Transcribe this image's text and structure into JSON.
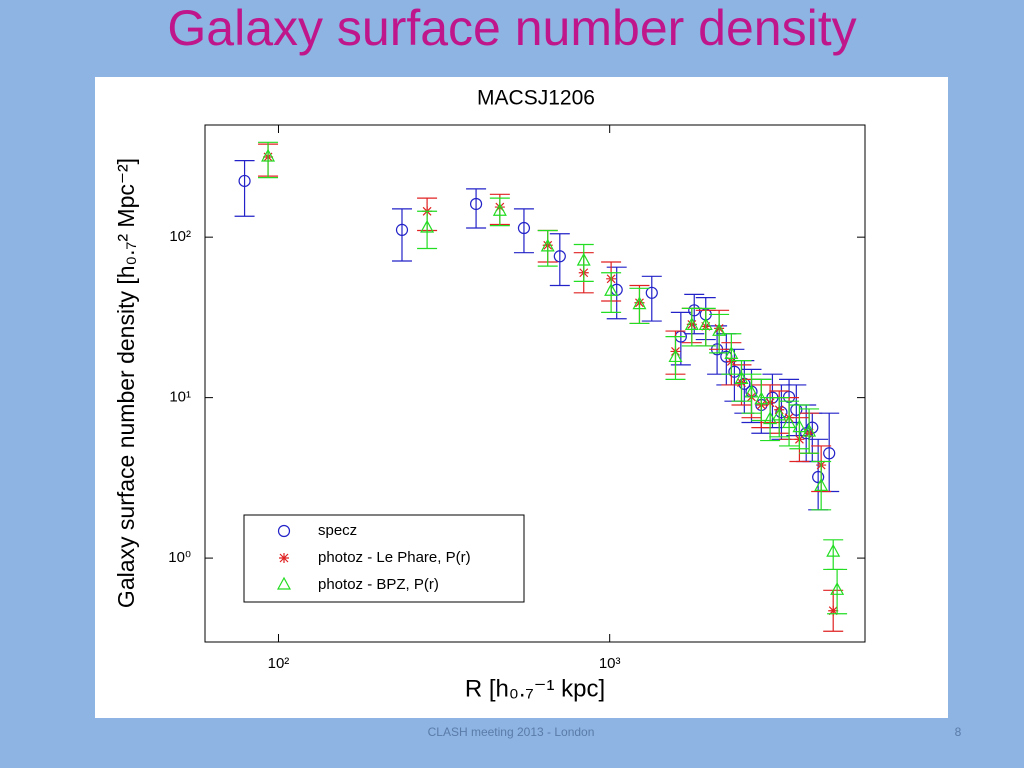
{
  "slide_title": "Galaxy surface number density",
  "footer": "CLASH meeting 2013 - London",
  "page_number": "8",
  "chart_data": {
    "type": "scatter",
    "title": "MACSJ1206",
    "x_label": "R [h₀.₇⁻¹ kpc]",
    "y_label": "Galaxy surface number density [h₀.₇² Mpc⁻²]",
    "xscale": "log",
    "yscale": "log",
    "xlim": [
      60,
      5900
    ],
    "ylim": [
      0.3,
      500
    ],
    "xticks": [
      {
        "value": 100,
        "label": "10²"
      },
      {
        "value": 1000,
        "label": "10³"
      }
    ],
    "yticks": [
      {
        "value": 1,
        "label": "10⁰"
      },
      {
        "value": 10,
        "label": "10¹"
      },
      {
        "value": 100,
        "label": "10²"
      }
    ],
    "legend": "lower left",
    "series": [
      {
        "name": "specz",
        "color": "#2222c8",
        "marker": "circle",
        "x": [
          79,
          236,
          395,
          551,
          707,
          1050,
          1340,
          1640,
          1800,
          1950,
          2110,
          2250,
          2380,
          2550,
          2680,
          2870,
          3100,
          3300,
          3480,
          3660,
          3920,
          4090,
          4260,
          4600
        ],
        "values": [
          224,
          111,
          161,
          114,
          76,
          47,
          45,
          24,
          35,
          33,
          20,
          18,
          14.5,
          12.2,
          10.9,
          9.0,
          10,
          8.1,
          10.1,
          8.4,
          6.0,
          6.5,
          3.2,
          4.5
        ],
        "lower": [
          135,
          71,
          114,
          80,
          50,
          31,
          30,
          16,
          25,
          23,
          14,
          12,
          9.5,
          8,
          7,
          6,
          6.5,
          5.5,
          7,
          5.8,
          4,
          4,
          2,
          2.6
        ],
        "upper": [
          300,
          150,
          200,
          150,
          105,
          65,
          57,
          34,
          44,
          42,
          28,
          25,
          20,
          17,
          15,
          13,
          14,
          12,
          13,
          12,
          9,
          8,
          5.5,
          8
        ]
      },
      {
        "name": "photoz - Le Phare, P(r)",
        "color": "#e02222",
        "marker": "asterisk",
        "x": [
          93,
          281,
          466,
          650,
          835,
          1010,
          1230,
          1580,
          1770,
          1950,
          2140,
          2330,
          2500,
          2680,
          2870,
          3050,
          3250,
          3480,
          3740,
          4000,
          4350,
          4730
        ],
        "values": [
          316,
          145,
          154,
          89,
          60,
          55,
          39,
          19.4,
          28.6,
          27.8,
          27,
          16.8,
          12.4,
          10.1,
          9.0,
          9.3,
          8.4,
          7.5,
          5.5,
          6.0,
          3.8,
          0.47
        ],
        "lower": [
          240,
          110,
          120,
          70,
          45,
          40,
          29,
          14,
          22,
          21,
          20,
          12,
          9,
          7.5,
          6.5,
          7,
          6,
          5.5,
          4,
          4.5,
          2.6,
          0.35
        ],
        "upper": [
          380,
          175,
          185,
          110,
          80,
          70,
          50,
          26,
          36,
          35,
          35,
          22,
          16,
          13,
          12,
          12,
          11,
          10,
          7.5,
          8,
          5,
          0.63
        ]
      },
      {
        "name": "photoz - BPZ, P(r)",
        "color": "#22dd22",
        "marker": "triangle",
        "x": [
          93,
          281,
          466,
          650,
          835,
          1010,
          1230,
          1580,
          1770,
          1950,
          2140,
          2330,
          2500,
          2680,
          2870,
          3050,
          3250,
          3480,
          3740,
          4000,
          4350,
          4730,
          4860
        ],
        "values": [
          316,
          114,
          145,
          87,
          71,
          46,
          38,
          17.8,
          28.2,
          28.2,
          25.9,
          18.6,
          13,
          10.7,
          9.7,
          7.3,
          7.7,
          6.9,
          6.5,
          6.1,
          2.8,
          1.09,
          0.63
        ],
        "lower": [
          235,
          85,
          118,
          66,
          53,
          34,
          29,
          13,
          21,
          21,
          19,
          14,
          9.5,
          8,
          7.2,
          5.4,
          5.7,
          5,
          4.8,
          4.5,
          2,
          0.85,
          0.45
        ],
        "upper": [
          390,
          145,
          175,
          110,
          90,
          60,
          48,
          24,
          36,
          36,
          33,
          25,
          17,
          14,
          13,
          10,
          10,
          9.5,
          9,
          8.5,
          4,
          1.3,
          0.85
        ]
      }
    ]
  }
}
